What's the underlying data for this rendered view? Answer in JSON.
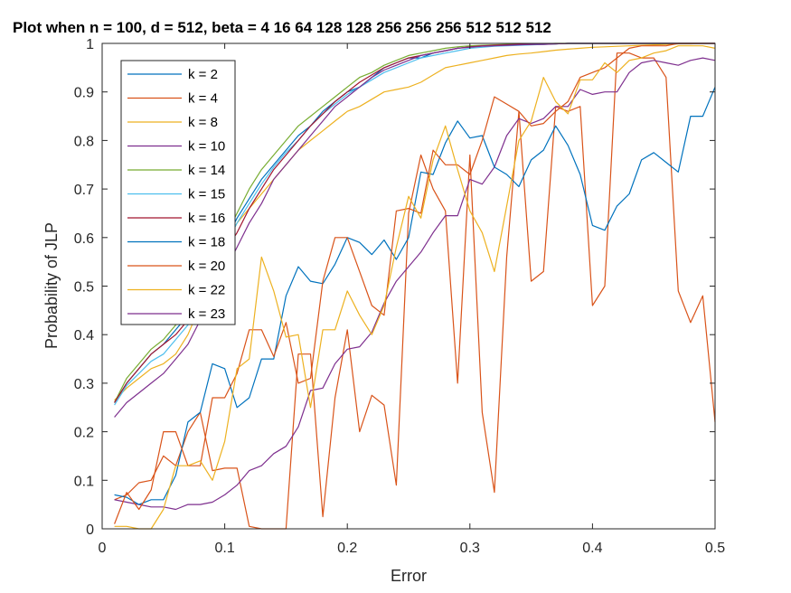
{
  "chart_data": {
    "type": "line",
    "title": "Plot when n = 100, d = 512, beta = 4   16   64  128  128  256  256  256  512  512  512",
    "xlabel": "Error",
    "ylabel": "Probability of JLP",
    "xlim": [
      0,
      0.5
    ],
    "ylim": [
      0,
      1
    ],
    "xticks": [
      "0",
      "0.1",
      "0.2",
      "0.3",
      "0.4",
      "0.5"
    ],
    "yticks": [
      "0",
      "0.1",
      "0.2",
      "0.3",
      "0.4",
      "0.5",
      "0.6",
      "0.7",
      "0.8",
      "0.9",
      "1"
    ],
    "grid": false,
    "legend_position": "top-left",
    "x": [
      0.01,
      0.02,
      0.03,
      0.04,
      0.05,
      0.06,
      0.07,
      0.08,
      0.09,
      0.1,
      0.11,
      0.12,
      0.13,
      0.14,
      0.15,
      0.16,
      0.17,
      0.18,
      0.19,
      0.2,
      0.21,
      0.22,
      0.23,
      0.24,
      0.25,
      0.26,
      0.27,
      0.28,
      0.29,
      0.3,
      0.31,
      0.32,
      0.33,
      0.34,
      0.35,
      0.36,
      0.37,
      0.38,
      0.39,
      0.4,
      0.41,
      0.42,
      0.43,
      0.44,
      0.45,
      0.46,
      0.47,
      0.48,
      0.49,
      0.5
    ],
    "series": [
      {
        "name": "k = 2",
        "color": "#0072BD",
        "values": [
          0.26,
          0.3,
          0.33,
          0.36,
          0.38,
          0.41,
          0.44,
          0.48,
          0.53,
          0.59,
          0.64,
          0.68,
          0.72,
          0.75,
          0.78,
          0.81,
          0.83,
          0.86,
          0.88,
          0.9,
          0.91,
          0.93,
          0.95,
          0.96,
          0.97,
          0.97,
          0.98,
          0.985,
          0.99,
          0.993,
          0.995,
          0.996,
          0.997,
          0.998,
          0.998,
          0.999,
          0.999,
          1,
          1,
          1,
          1,
          1,
          1,
          1,
          1,
          1,
          1,
          1,
          1,
          1
        ]
      },
      {
        "name": "k = 4",
        "color": "#D95319",
        "values": [
          0.06,
          0.07,
          0.095,
          0.1,
          0.15,
          0.13,
          0.2,
          0.24,
          0.12,
          0.125,
          0.125,
          0.005,
          0,
          0,
          0,
          0.36,
          0.36,
          0.025,
          0.27,
          0.41,
          0.2,
          0.275,
          0.255,
          0.09,
          0.65,
          0.77,
          0.7,
          0.655,
          0.3,
          0.77,
          0.24,
          0.075,
          0.56,
          0.86,
          0.51,
          0.53,
          0.87,
          0.86,
          0.87,
          0.46,
          0.5,
          0.98,
          0.98,
          0.97,
          0.97,
          0.93,
          0.49,
          0.425,
          0.48,
          0.22
        ]
      },
      {
        "name": "k = 8",
        "color": "#EDB120",
        "values": [
          0.265,
          0.29,
          0.31,
          0.33,
          0.34,
          0.36,
          0.4,
          0.46,
          0.52,
          0.58,
          0.63,
          0.66,
          0.69,
          0.72,
          0.75,
          0.78,
          0.8,
          0.82,
          0.84,
          0.86,
          0.87,
          0.885,
          0.9,
          0.905,
          0.91,
          0.92,
          0.935,
          0.95,
          0.955,
          0.96,
          0.965,
          0.97,
          0.975,
          0.978,
          0.98,
          0.983,
          0.986,
          0.988,
          0.99,
          0.992,
          0.993,
          0.994,
          0.995,
          0.996,
          0.997,
          0.998,
          0.999,
          0.999,
          1,
          1
        ]
      },
      {
        "name": "k = 10",
        "color": "#7E2F8E",
        "values": [
          0.06,
          0.055,
          0.05,
          0.045,
          0.045,
          0.04,
          0.05,
          0.05,
          0.055,
          0.07,
          0.09,
          0.12,
          0.13,
          0.155,
          0.17,
          0.21,
          0.285,
          0.29,
          0.34,
          0.37,
          0.375,
          0.405,
          0.465,
          0.51,
          0.54,
          0.57,
          0.61,
          0.645,
          0.645,
          0.72,
          0.71,
          0.745,
          0.81,
          0.845,
          0.835,
          0.845,
          0.87,
          0.87,
          0.905,
          0.895,
          0.9,
          0.9,
          0.94,
          0.96,
          0.965,
          0.96,
          0.955,
          0.965,
          0.97,
          0.965
        ]
      },
      {
        "name": "k = 14",
        "color": "#77AC30",
        "values": [
          0.26,
          0.31,
          0.34,
          0.37,
          0.39,
          0.42,
          0.45,
          0.49,
          0.55,
          0.6,
          0.65,
          0.7,
          0.74,
          0.77,
          0.8,
          0.83,
          0.85,
          0.87,
          0.89,
          0.91,
          0.93,
          0.94,
          0.955,
          0.965,
          0.975,
          0.98,
          0.985,
          0.99,
          0.993,
          0.995,
          0.996,
          0.997,
          0.998,
          0.998,
          0.999,
          0.999,
          1,
          1,
          1,
          1,
          1,
          1,
          1,
          1,
          1,
          1,
          1,
          1,
          1,
          1
        ]
      },
      {
        "name": "k = 15",
        "color": "#4DBEEE",
        "values": [
          0.255,
          0.295,
          0.32,
          0.345,
          0.36,
          0.39,
          0.42,
          0.46,
          0.52,
          0.58,
          0.63,
          0.67,
          0.71,
          0.745,
          0.775,
          0.8,
          0.83,
          0.855,
          0.875,
          0.895,
          0.91,
          0.925,
          0.94,
          0.95,
          0.96,
          0.97,
          0.975,
          0.98,
          0.985,
          0.99,
          0.992,
          0.994,
          0.995,
          0.996,
          0.997,
          0.998,
          0.999,
          1,
          1,
          1,
          1,
          1,
          1,
          1,
          1,
          1,
          1,
          1,
          1,
          1
        ]
      },
      {
        "name": "k = 16",
        "color": "#A2142F",
        "values": [
          0.26,
          0.3,
          0.33,
          0.36,
          0.38,
          0.4,
          0.43,
          0.47,
          0.52,
          0.57,
          0.61,
          0.66,
          0.7,
          0.74,
          0.77,
          0.8,
          0.83,
          0.855,
          0.88,
          0.9,
          0.92,
          0.935,
          0.95,
          0.96,
          0.97,
          0.975,
          0.98,
          0.985,
          0.99,
          0.993,
          0.995,
          0.996,
          0.997,
          0.998,
          0.998,
          0.999,
          0.999,
          1,
          1,
          1,
          1,
          1,
          1,
          1,
          1,
          1,
          1,
          1,
          1,
          1
        ]
      },
      {
        "name": "k = 18",
        "color": "#0072BD",
        "values": [
          0.07,
          0.065,
          0.05,
          0.06,
          0.06,
          0.11,
          0.22,
          0.24,
          0.34,
          0.33,
          0.25,
          0.27,
          0.35,
          0.35,
          0.48,
          0.54,
          0.51,
          0.505,
          0.545,
          0.6,
          0.59,
          0.565,
          0.595,
          0.555,
          0.6,
          0.735,
          0.73,
          0.795,
          0.84,
          0.805,
          0.81,
          0.745,
          0.73,
          0.705,
          0.76,
          0.78,
          0.83,
          0.79,
          0.73,
          0.625,
          0.615,
          0.665,
          0.69,
          0.76,
          0.775,
          0.755,
          0.735,
          0.85,
          0.85,
          0.91
        ]
      },
      {
        "name": "k = 20",
        "color": "#D95319",
        "values": [
          0.01,
          0.075,
          0.04,
          0.08,
          0.2,
          0.2,
          0.13,
          0.13,
          0.27,
          0.27,
          0.32,
          0.41,
          0.41,
          0.355,
          0.425,
          0.3,
          0.31,
          0.51,
          0.6,
          0.6,
          0.53,
          0.46,
          0.44,
          0.655,
          0.66,
          0.65,
          0.78,
          0.75,
          0.75,
          0.73,
          0.8,
          0.89,
          0.875,
          0.86,
          0.83,
          0.835,
          0.86,
          0.88,
          0.93,
          0.94,
          0.95,
          0.97,
          0.99,
          0.995,
          0.995,
          0.995,
          1,
          1,
          1,
          1
        ]
      },
      {
        "name": "k = 22",
        "color": "#EDB120",
        "values": [
          0.005,
          0.005,
          0,
          0,
          0.04,
          0.13,
          0.13,
          0.14,
          0.1,
          0.18,
          0.33,
          0.35,
          0.56,
          0.49,
          0.395,
          0.4,
          0.25,
          0.41,
          0.41,
          0.49,
          0.44,
          0.4,
          0.46,
          0.58,
          0.685,
          0.64,
          0.76,
          0.83,
          0.74,
          0.655,
          0.61,
          0.53,
          0.665,
          0.8,
          0.84,
          0.93,
          0.88,
          0.855,
          0.925,
          0.925,
          0.96,
          0.94,
          0.965,
          0.97,
          0.98,
          0.985,
          0.995,
          0.995,
          0.995,
          0.99
        ]
      },
      {
        "name": "k = 23",
        "color": "#7E2F8E",
        "values": [
          0.23,
          0.26,
          0.28,
          0.3,
          0.32,
          0.35,
          0.38,
          0.43,
          0.48,
          0.53,
          0.58,
          0.63,
          0.67,
          0.72,
          0.75,
          0.78,
          0.81,
          0.84,
          0.87,
          0.89,
          0.91,
          0.93,
          0.945,
          0.955,
          0.965,
          0.975,
          0.98,
          0.985,
          0.99,
          0.992,
          0.994,
          0.995,
          0.996,
          0.997,
          0.998,
          0.998,
          0.999,
          1,
          1,
          1,
          1,
          1,
          1,
          1,
          1,
          1,
          1,
          1,
          1,
          1
        ]
      }
    ]
  }
}
